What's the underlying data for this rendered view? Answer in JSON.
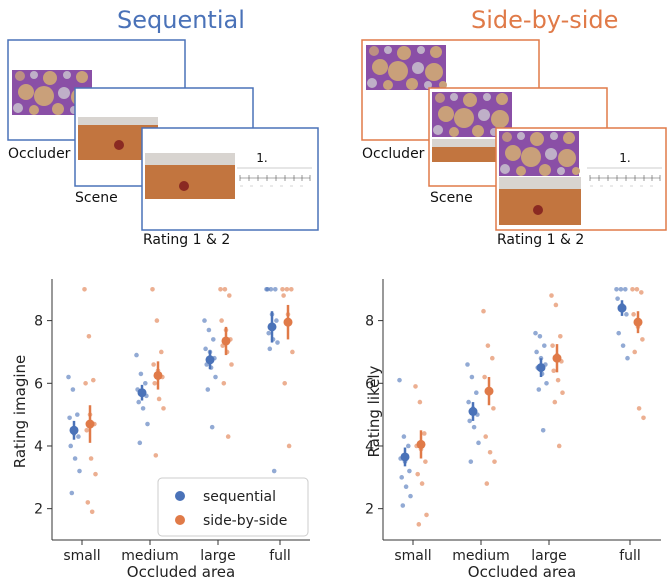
{
  "colors": {
    "sequential": "#4a72b8",
    "side_by_side": "#e07a48",
    "occluder_bg": "#8a4fa6",
    "occluder_circle": "#c9a07a",
    "scene_floor": "#c2753f",
    "scene_wall": "#d8d4d0",
    "ball": "#8a2a22"
  },
  "panels": {
    "sequential": {
      "title": "Sequential",
      "labels": {
        "occluder": "Occluder",
        "scene": "Scene",
        "rating": "Rating 1 & 2",
        "rating_number": "1."
      }
    },
    "side_by_side": {
      "title": "Side-by-side",
      "labels": {
        "occluder": "Occluder",
        "scene": "Scene",
        "rating": "Rating 1 & 2",
        "rating_number": "1."
      }
    }
  },
  "chart_data": [
    {
      "type": "scatter",
      "title": "",
      "xlabel": "Occluded area",
      "ylabel": "Rating imagine",
      "categories": [
        "small",
        "medium",
        "large",
        "full"
      ],
      "ylim": [
        1.0,
        9.2
      ],
      "yticks": [
        "2",
        "4",
        "6",
        "8"
      ],
      "legend": {
        "position": "bottom-right",
        "entries": [
          "sequential",
          "side-by-side"
        ]
      },
      "series": [
        {
          "name": "sequential",
          "means": [
            4.5,
            5.7,
            6.75,
            7.8
          ],
          "ci": [
            [
              4.2,
              4.8
            ],
            [
              5.45,
              5.95
            ],
            [
              6.45,
              7.05
            ],
            [
              7.3,
              8.3
            ]
          ],
          "points": [
            [
              6.2,
              5.8,
              5.0,
              4.9,
              4.4,
              4.3,
              4.0,
              3.6,
              3.2,
              2.5
            ],
            [
              6.9,
              6.3,
              6.0,
              5.8,
              5.7,
              5.6,
              5.4,
              5.2,
              4.7,
              4.1
            ],
            [
              8.0,
              7.7,
              7.4,
              7.1,
              7.0,
              6.8,
              6.6,
              6.5,
              6.2,
              5.8,
              4.6
            ],
            [
              9.0,
              9.0,
              9.0,
              9.0,
              8.2,
              8.0,
              7.6,
              7.4,
              7.3,
              7.1,
              3.2
            ]
          ]
        },
        {
          "name": "side-by-side",
          "means": [
            4.7,
            6.25,
            7.35,
            7.95
          ],
          "ci": [
            [
              4.1,
              5.3
            ],
            [
              5.8,
              6.7
            ],
            [
              6.9,
              7.8
            ],
            [
              7.4,
              8.5
            ]
          ],
          "points": [
            [
              9.0,
              7.5,
              6.1,
              6.0,
              5.0,
              4.7,
              4.5,
              3.6,
              3.1,
              2.2,
              1.9
            ],
            [
              9.0,
              8.0,
              7.0,
              6.6,
              6.4,
              6.2,
              6.0,
              5.5,
              5.2,
              3.7
            ],
            [
              9.0,
              9.0,
              8.8,
              8.0,
              7.7,
              7.4,
              7.2,
              7.0,
              6.6,
              6.0,
              4.3
            ],
            [
              9.0,
              9.0,
              9.0,
              8.8,
              8.2,
              7.0,
              6.0,
              4.0
            ]
          ]
        }
      ]
    },
    {
      "type": "scatter",
      "title": "",
      "xlabel": "Occluded area",
      "ylabel": "Rating likely",
      "categories": [
        "small",
        "medium",
        "large",
        "full"
      ],
      "ylim": [
        1.0,
        9.2
      ],
      "yticks": [
        "2",
        "4",
        "6",
        "8"
      ],
      "series": [
        {
          "name": "sequential",
          "means": [
            3.65,
            5.1,
            6.5,
            8.4
          ],
          "ci": [
            [
              3.35,
              3.95
            ],
            [
              4.8,
              5.4
            ],
            [
              6.2,
              6.8
            ],
            [
              8.15,
              8.65
            ]
          ],
          "points": [
            [
              6.1,
              4.3,
              4.0,
              3.6,
              3.5,
              3.2,
              3.0,
              2.7,
              2.4,
              2.1
            ],
            [
              6.6,
              6.2,
              5.7,
              5.4,
              5.2,
              5.0,
              4.8,
              4.6,
              4.1,
              3.5
            ],
            [
              7.6,
              7.5,
              7.2,
              7.0,
              6.8,
              6.6,
              6.5,
              6.3,
              6.0,
              5.8,
              4.5
            ],
            [
              9.0,
              9.0,
              9.0,
              8.7,
              8.5,
              8.2,
              7.6,
              7.2,
              6.8
            ]
          ]
        },
        {
          "name": "side-by-side",
          "means": [
            4.05,
            5.75,
            6.8,
            7.95
          ],
          "ci": [
            [
              3.6,
              4.5
            ],
            [
              5.3,
              6.2
            ],
            [
              6.35,
              7.25
            ],
            [
              7.6,
              8.3
            ]
          ],
          "points": [
            [
              5.9,
              5.4,
              4.4,
              4.0,
              3.9,
              3.5,
              3.1,
              2.8,
              1.8,
              1.5
            ],
            [
              8.3,
              7.2,
              6.8,
              6.2,
              5.8,
              5.2,
              4.3,
              3.8,
              3.5,
              2.8
            ],
            [
              8.8,
              8.5,
              7.5,
              7.2,
              6.9,
              6.7,
              6.4,
              6.1,
              5.7,
              5.4,
              4.0
            ],
            [
              9.0,
              9.0,
              8.9,
              8.2,
              7.8,
              7.4,
              7.0,
              5.2,
              4.9
            ]
          ]
        }
      ]
    }
  ]
}
